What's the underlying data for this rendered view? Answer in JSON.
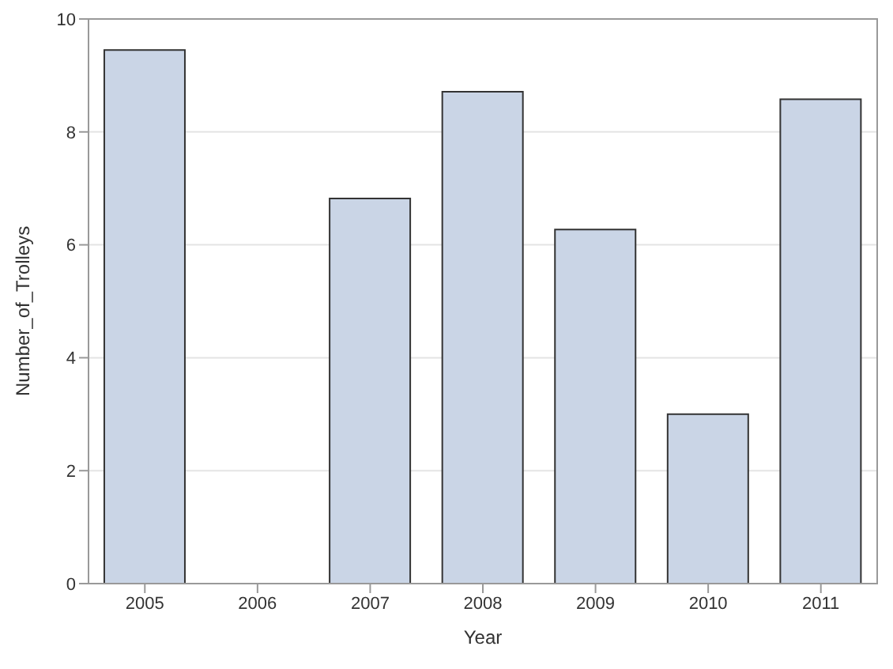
{
  "chart_data": {
    "type": "bar",
    "xlabel": "Year",
    "ylabel": "Number_of_Trolleys",
    "categories": [
      "2005",
      "2006",
      "2007",
      "2008",
      "2009",
      "2010",
      "2011"
    ],
    "values": [
      9.45,
      0,
      6.82,
      8.71,
      6.27,
      3,
      8.58
    ],
    "color": "#cad5e6",
    "ylim": [
      0,
      10
    ],
    "yticks": [
      0,
      2,
      4,
      6,
      8,
      10
    ],
    "grid": "y"
  }
}
